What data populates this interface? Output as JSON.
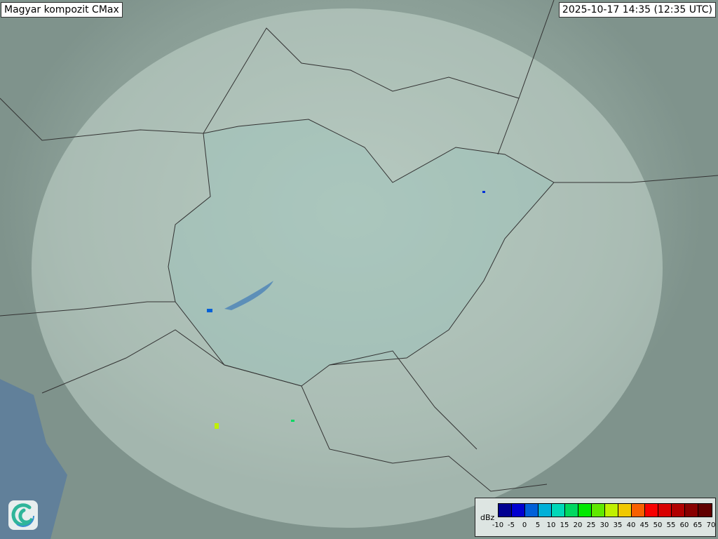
{
  "header": {
    "title": "Magyar kompozit  CMax",
    "timestamp": "2025-10-17 14:35 (12:35 UTC)"
  },
  "legend": {
    "unit": "dBz",
    "ticks": [
      "-10",
      "-5",
      "0",
      "5",
      "10",
      "15",
      "20",
      "25",
      "30",
      "35",
      "40",
      "45",
      "50",
      "55",
      "60",
      "65",
      "70"
    ],
    "colors": [
      "#000090",
      "#0000d0",
      "#0060d8",
      "#00b0d8",
      "#00d8b8",
      "#00d860",
      "#00e800",
      "#60e800",
      "#c0f000",
      "#f0c800",
      "#f86000",
      "#f80000",
      "#d80000",
      "#b00000",
      "#880000",
      "#600000"
    ]
  },
  "logo": {
    "icon": "swirl-logo-icon"
  }
}
